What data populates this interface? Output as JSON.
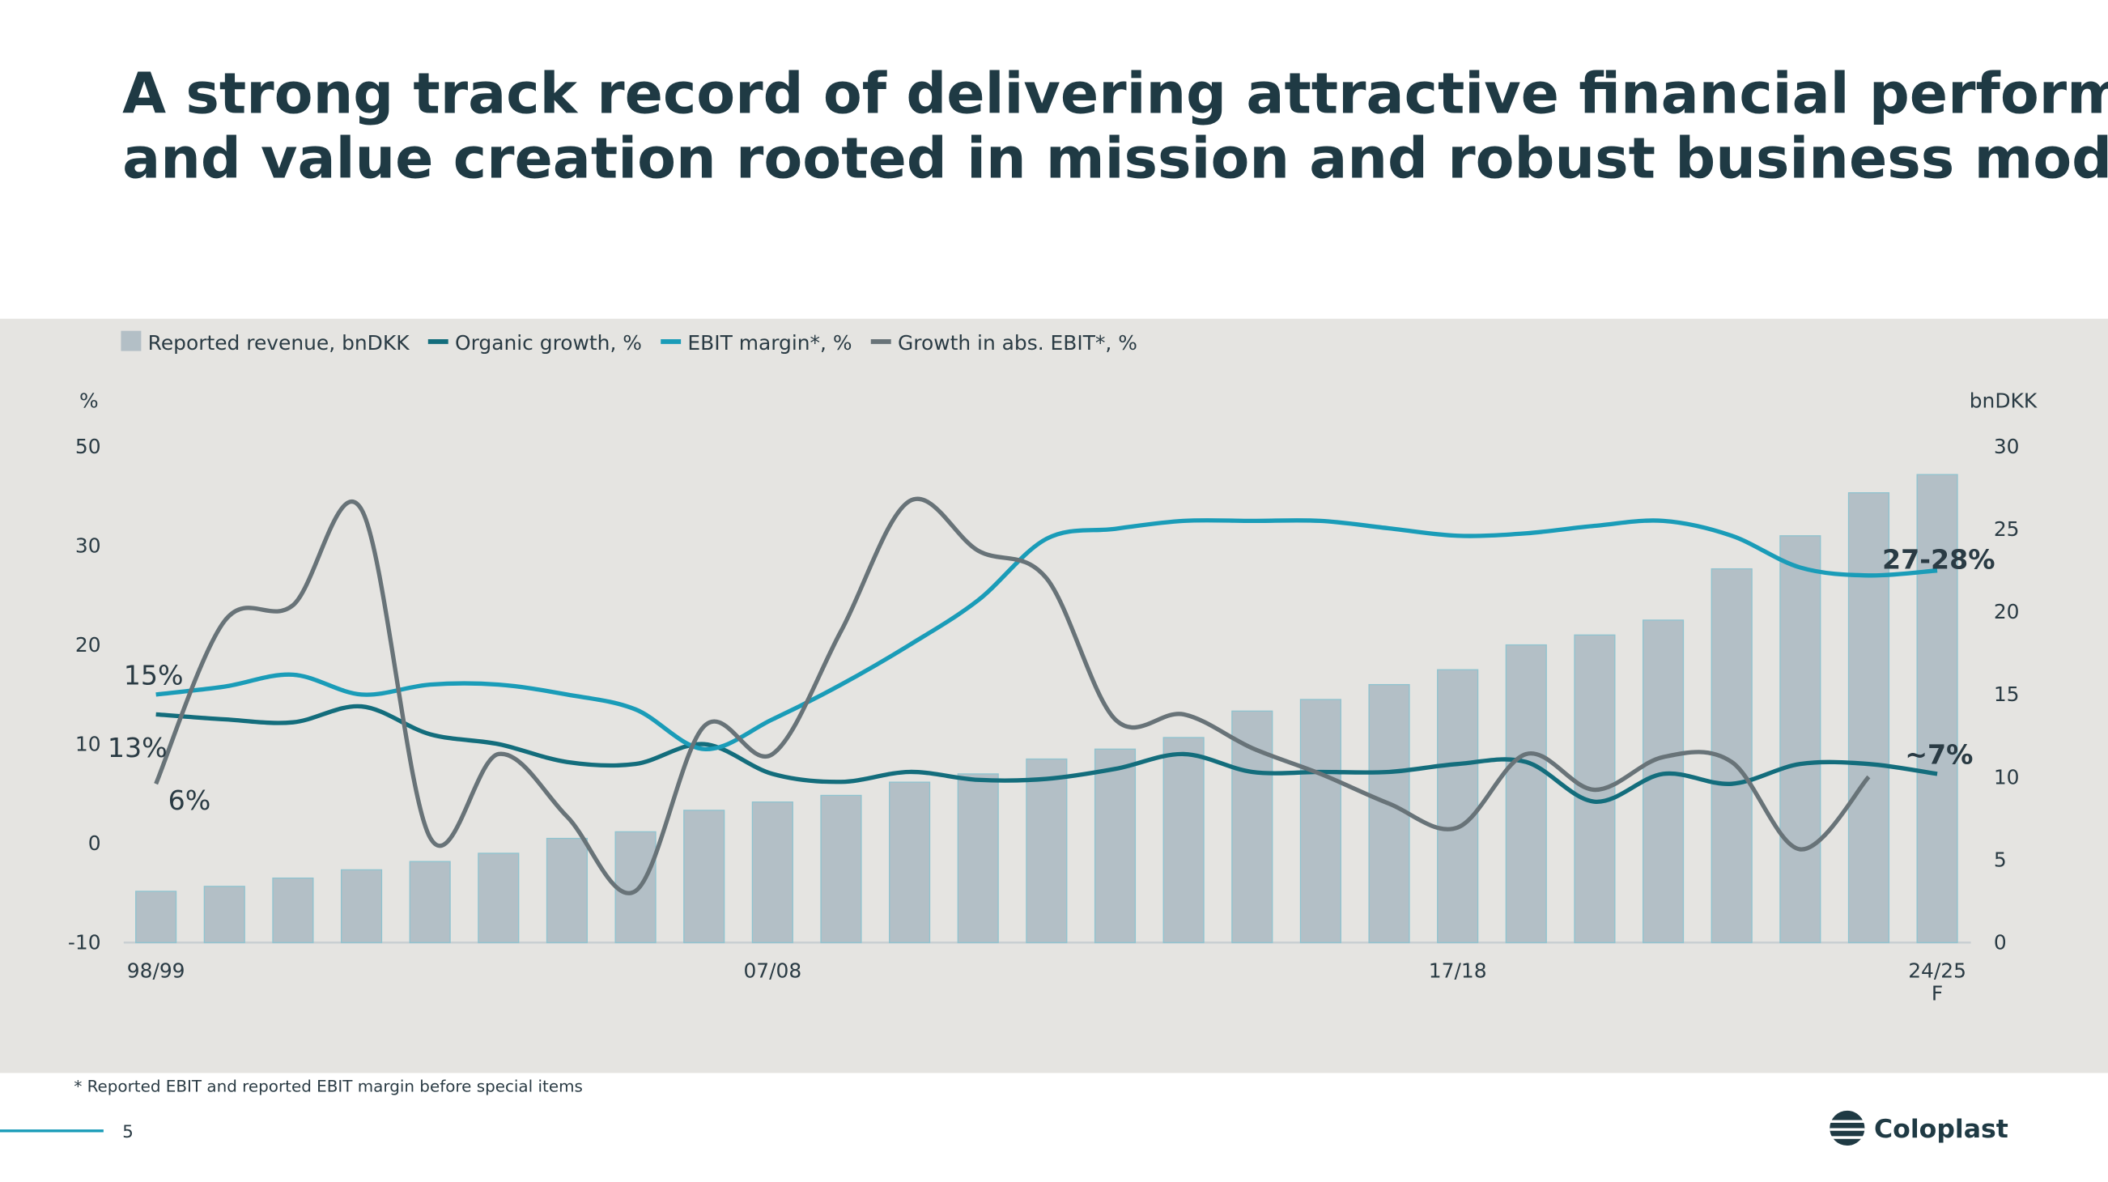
{
  "chart_data": {
    "type": "bar-line",
    "title": "A strong track record of delivering attractive financial performance and value creation rooted in mission and robust business model",
    "categories": [
      "98/99",
      null,
      null,
      null,
      null,
      null,
      null,
      null,
      null,
      "07/08",
      null,
      null,
      null,
      null,
      null,
      null,
      null,
      null,
      null,
      "17/18",
      null,
      null,
      null,
      null,
      null,
      null,
      "24/25\nF"
    ],
    "series": [
      {
        "name": "Reported revenue, bnDKK",
        "type": "bar",
        "axis": "y2",
        "color": "#b3bfc6",
        "values": [
          3.1,
          3.4,
          3.9,
          4.4,
          4.9,
          5.4,
          6.3,
          6.7,
          8.0,
          8.5,
          8.9,
          9.7,
          10.2,
          11.1,
          11.7,
          12.4,
          14.0,
          14.7,
          15.6,
          16.5,
          18.0,
          18.6,
          19.5,
          22.6,
          24.6,
          27.2,
          28.3
        ]
      },
      {
        "name": "Organic growth, %",
        "type": "line",
        "color": "#136d7c",
        "values": [
          13,
          12.5,
          12.2,
          13.8,
          11,
          10,
          8.2,
          8,
          10,
          7,
          6.2,
          7.2,
          6.4,
          6.5,
          7.5,
          9,
          7.2,
          7.2,
          7.2,
          8,
          8.2,
          4.2,
          7,
          6,
          8,
          8,
          7
        ]
      },
      {
        "name": "EBIT margin*, %",
        "type": "line",
        "color": "#1a9cb8",
        "values": [
          15,
          15.8,
          17,
          15,
          16,
          16,
          15,
          13.5,
          9.5,
          12.5,
          16,
          20,
          24.5,
          31.4,
          33.4,
          35,
          35,
          35,
          33.5,
          32,
          32.5,
          34,
          35,
          32,
          27.8,
          27,
          27.5
        ]
      },
      {
        "name": "Growth in abs. EBIT*, %",
        "type": "line",
        "color": "#687378",
        "values": [
          6,
          22.4,
          24,
          37.3,
          0.6,
          9,
          2.7,
          -4.8,
          11.8,
          9,
          21.4,
          39,
          29.5,
          26.7,
          12.5,
          13,
          9.6,
          7,
          4,
          1.6,
          9,
          5.4,
          8.7,
          8.2,
          -0.6,
          6.7,
          null
        ]
      }
    ],
    "ylabel": "%",
    "y2label": "bnDKK",
    "ylim": [
      -10,
      50
    ],
    "yticks": [
      -10,
      0,
      10,
      20,
      30,
      50
    ],
    "y2lim": [
      0,
      30
    ],
    "y2ticks": [
      0,
      5,
      10,
      15,
      20,
      25,
      30
    ],
    "annotations": [
      "15%",
      "13%",
      "6%",
      "27-28%",
      "~7%"
    ],
    "footnote": "* Reported EBIT and reported EBIT margin before special items",
    "page_number": "5",
    "logo": "Coloplast"
  }
}
